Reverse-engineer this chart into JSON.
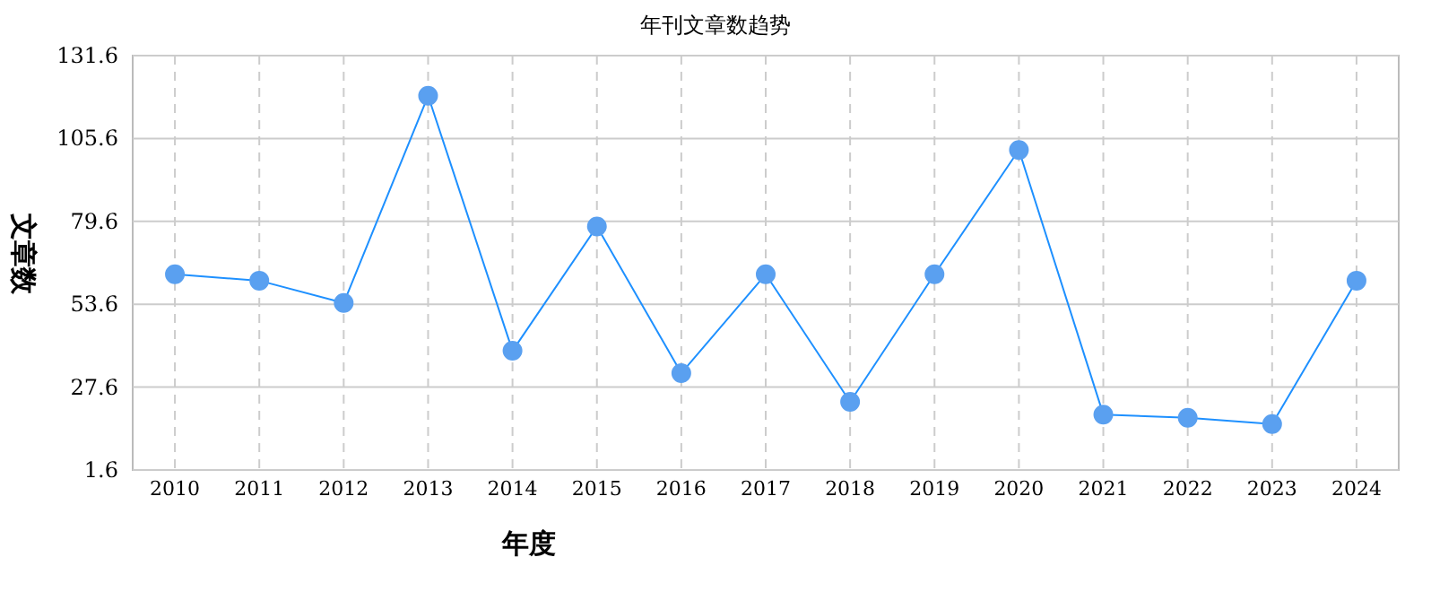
{
  "chart_data": {
    "type": "line",
    "title": "年刊文章数趋势",
    "xlabel": "年度",
    "ylabel": "文章数",
    "categories": [
      "2010",
      "2011",
      "2012",
      "2013",
      "2014",
      "2015",
      "2016",
      "2017",
      "2018",
      "2019",
      "2020",
      "2021",
      "2022",
      "2023",
      "2024"
    ],
    "series": [
      {
        "color": "#1e90ff",
        "values": [
          63,
          61,
          54,
          119,
          39,
          78,
          32,
          63,
          23,
          63,
          102,
          19,
          18,
          16,
          61
        ]
      }
    ],
    "ylim": [
      1.6,
      131.6
    ],
    "yticks": [
      1.6,
      27.6,
      53.6,
      79.6,
      105.6,
      131.6
    ],
    "grid": true,
    "marker": "circle",
    "line_style": "solid"
  }
}
